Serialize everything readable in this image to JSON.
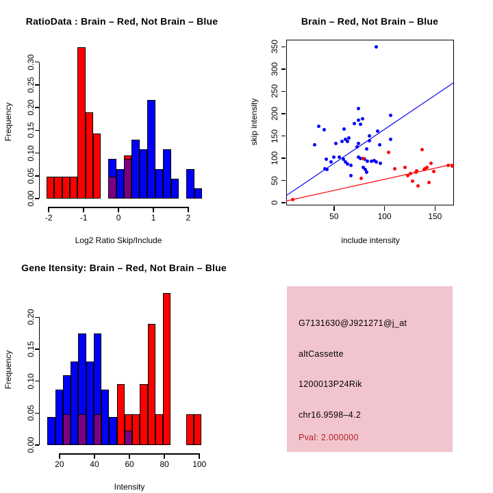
{
  "colors": {
    "red": "#ff0000",
    "blue": "#0000f5",
    "purple": "#7d0082",
    "pink_bg": "#f2c5ce",
    "pval_red": "#b22222",
    "axis": "#000000",
    "text": "#000000"
  },
  "chart_data": [
    {
      "id": "ratio_hist",
      "type": "bar",
      "variant": "overlaid-histograms",
      "title": "RatioData : Brain – Red, Not Brain – Blue",
      "xlabel": "Log2 Ratio Skip/Include",
      "ylabel": "Frequency",
      "xlim": [
        -2.26,
        2.57
      ],
      "ylim": [
        0,
        0.358
      ],
      "grid": false,
      "x_ticks": {
        "values": [
          -2,
          -1,
          0,
          1,
          2
        ],
        "labels": [
          "-2",
          "-1",
          "0",
          "1",
          "2"
        ]
      },
      "y_ticks": {
        "values": [
          0,
          0.05,
          0.1,
          0.15,
          0.2,
          0.25,
          0.3
        ],
        "labels": [
          "0.00",
          "0.05",
          "0.10",
          "0.15",
          "0.20",
          "0.25",
          "0.30"
        ]
      },
      "series": [
        {
          "name": "Brain (red)",
          "color": "red",
          "bins": [
            {
              "x0": -2.07,
              "x1": -1.85,
              "h": 0.048
            },
            {
              "x0": -1.85,
              "x1": -1.62,
              "h": 0.048
            },
            {
              "x0": -1.62,
              "x1": -1.4,
              "h": 0.048
            },
            {
              "x0": -1.4,
              "x1": -1.18,
              "h": 0.048
            },
            {
              "x0": -1.18,
              "x1": -0.95,
              "h": 0.333
            },
            {
              "x0": -0.95,
              "x1": -0.73,
              "h": 0.19
            },
            {
              "x0": -0.73,
              "x1": -0.51,
              "h": 0.143
            },
            {
              "x0": -0.29,
              "x1": -0.06,
              "h": 0.048
            },
            {
              "x0": 0.16,
              "x1": 0.38,
              "h": 0.095
            }
          ]
        },
        {
          "name": "Not Brain (blue)",
          "color": "blue",
          "bins": [
            {
              "x0": -0.29,
              "x1": -0.06,
              "h": 0.087
            },
            {
              "x0": -0.06,
              "x1": 0.16,
              "h": 0.065
            },
            {
              "x0": 0.16,
              "x1": 0.38,
              "h": 0.087
            },
            {
              "x0": 0.38,
              "x1": 0.61,
              "h": 0.13
            },
            {
              "x0": 0.61,
              "x1": 0.83,
              "h": 0.109
            },
            {
              "x0": 0.83,
              "x1": 1.05,
              "h": 0.217
            },
            {
              "x0": 1.05,
              "x1": 1.28,
              "h": 0.065
            },
            {
              "x0": 1.28,
              "x1": 1.5,
              "h": 0.109
            },
            {
              "x0": 1.5,
              "x1": 1.72,
              "h": 0.043
            },
            {
              "x0": 1.94,
              "x1": 2.17,
              "h": 0.065
            },
            {
              "x0": 2.17,
              "x1": 2.39,
              "h": 0.022
            }
          ]
        }
      ],
      "overlap": {
        "color": "purple",
        "bins": [
          {
            "x0": -0.29,
            "x1": -0.06,
            "h": 0.048
          },
          {
            "x0": 0.16,
            "x1": 0.38,
            "h": 0.087
          }
        ]
      }
    },
    {
      "id": "intensity_scatter",
      "type": "scatter",
      "title": "Brain – Red, Not Brain – Blue",
      "xlabel": "include intensity",
      "ylabel": "skip intensity",
      "xlim": [
        2.6,
        168.8
      ],
      "ylim": [
        -6,
        366
      ],
      "grid": false,
      "x_ticks": {
        "values": [
          50,
          100,
          150
        ],
        "labels": [
          "50",
          "100",
          "150"
        ]
      },
      "y_ticks": {
        "values": [
          0,
          50,
          100,
          150,
          200,
          250,
          300,
          350
        ],
        "labels": [
          "0",
          "50",
          "100",
          "150",
          "200",
          "250",
          "300",
          "350"
        ]
      },
      "series": [
        {
          "name": "Not Brain (blue)",
          "color": "blue",
          "points": [
            [
              92,
              350
            ],
            [
              74,
              212
            ],
            [
              106,
              196
            ],
            [
              35,
              172
            ],
            [
              40,
              164
            ],
            [
              60,
              165
            ],
            [
              70,
              178
            ],
            [
              74,
              185
            ],
            [
              78,
              188
            ],
            [
              76,
              176
            ],
            [
              31,
              130
            ],
            [
              52,
              133
            ],
            [
              58,
              138
            ],
            [
              63,
              137
            ],
            [
              74,
              133
            ],
            [
              61,
              143
            ],
            [
              65,
              146
            ],
            [
              85,
              150
            ],
            [
              93,
              161
            ],
            [
              85,
              139
            ],
            [
              95,
              130
            ],
            [
              106,
              142
            ],
            [
              73,
              125
            ],
            [
              82,
              121
            ],
            [
              42,
              97
            ],
            [
              47,
              92
            ],
            [
              50,
              102
            ],
            [
              55,
              103
            ],
            [
              59,
              97
            ],
            [
              61,
              91
            ],
            [
              41,
              77
            ],
            [
              43,
              75
            ],
            [
              63,
              87
            ],
            [
              67,
              84
            ],
            [
              74,
              102
            ],
            [
              76,
              99
            ],
            [
              80,
              97
            ],
            [
              83,
              93
            ],
            [
              87,
              93
            ],
            [
              90,
              95
            ],
            [
              92,
              92
            ],
            [
              96,
              88
            ],
            [
              79,
              79
            ],
            [
              81,
              75
            ],
            [
              82,
              69
            ],
            [
              67,
              61
            ]
          ]
        },
        {
          "name": "Brain (red)",
          "color": "red",
          "points": [
            [
              9,
              7
            ],
            [
              79,
              99
            ],
            [
              104,
              113
            ],
            [
              77,
              54
            ],
            [
              110,
              77
            ],
            [
              120,
              79
            ],
            [
              123,
              61
            ],
            [
              126,
              66
            ],
            [
              131,
              69
            ],
            [
              132,
              72
            ],
            [
              137,
              120
            ],
            [
              139,
              75
            ],
            [
              140,
              77
            ],
            [
              142,
              79
            ],
            [
              146,
              88
            ],
            [
              128,
              48
            ],
            [
              133,
              38
            ],
            [
              144,
              46
            ],
            [
              149,
              70
            ],
            [
              163,
              84
            ],
            [
              167,
              82
            ]
          ]
        }
      ],
      "lines": [
        {
          "name": "not-brain-fit",
          "color": "blue",
          "from": [
            2.6,
            16
          ],
          "to": [
            168.8,
            270
          ]
        },
        {
          "name": "brain-fit",
          "color": "red",
          "from": [
            2.6,
            4
          ],
          "to": [
            168.8,
            87
          ]
        }
      ]
    },
    {
      "id": "gene_hist",
      "type": "bar",
      "variant": "overlaid-histograms",
      "title": "Gene Itensity: Brain – Red, Not Brain – Blue",
      "xlabel": "Intensity",
      "ylabel": "Frequency",
      "xlim": [
        8.7,
        105.0
      ],
      "ylim": [
        0,
        0.2465
      ],
      "grid": false,
      "x_ticks": {
        "values": [
          20,
          40,
          60,
          80,
          100
        ],
        "labels": [
          "20",
          "40",
          "60",
          "80",
          "100"
        ]
      },
      "y_ticks": {
        "values": [
          0,
          0.05,
          0.1,
          0.15,
          0.2
        ],
        "labels": [
          "0.00",
          "0.05",
          "0.10",
          "0.15",
          "0.20"
        ]
      },
      "series": [
        {
          "name": "Brain (red)",
          "color": "red",
          "bins": [
            {
              "x0": 22.0,
              "x1": 26.4,
              "h": 0.048
            },
            {
              "x0": 30.8,
              "x1": 35.2,
              "h": 0.048
            },
            {
              "x0": 39.6,
              "x1": 44.0,
              "h": 0.048
            },
            {
              "x0": 52.8,
              "x1": 57.2,
              "h": 0.095
            },
            {
              "x0": 57.2,
              "x1": 61.6,
              "h": 0.048
            },
            {
              "x0": 61.6,
              "x1": 66.0,
              "h": 0.048
            },
            {
              "x0": 66.0,
              "x1": 70.4,
              "h": 0.095
            },
            {
              "x0": 70.4,
              "x1": 74.8,
              "h": 0.19
            },
            {
              "x0": 74.8,
              "x1": 79.2,
              "h": 0.048
            },
            {
              "x0": 79.2,
              "x1": 83.6,
              "h": 0.238
            },
            {
              "x0": 92.4,
              "x1": 96.8,
              "h": 0.048
            },
            {
              "x0": 96.8,
              "x1": 101.2,
              "h": 0.048
            }
          ]
        },
        {
          "name": "Not Brain (blue)",
          "color": "blue",
          "bins": [
            {
              "x0": 13.2,
              "x1": 17.6,
              "h": 0.044
            },
            {
              "x0": 17.6,
              "x1": 22.0,
              "h": 0.087
            },
            {
              "x0": 22.0,
              "x1": 26.4,
              "h": 0.109
            },
            {
              "x0": 26.4,
              "x1": 30.8,
              "h": 0.131
            },
            {
              "x0": 30.8,
              "x1": 35.2,
              "h": 0.175
            },
            {
              "x0": 35.2,
              "x1": 39.6,
              "h": 0.131
            },
            {
              "x0": 39.6,
              "x1": 44.0,
              "h": 0.175
            },
            {
              "x0": 44.0,
              "x1": 48.4,
              "h": 0.087
            },
            {
              "x0": 48.4,
              "x1": 52.8,
              "h": 0.044
            },
            {
              "x0": 57.2,
              "x1": 61.6,
              "h": 0.022
            }
          ]
        }
      ],
      "overlap": {
        "color": "purple",
        "bins": [
          {
            "x0": 22.0,
            "x1": 26.4,
            "h": 0.048
          },
          {
            "x0": 30.8,
            "x1": 35.2,
            "h": 0.048
          },
          {
            "x0": 39.6,
            "x1": 44.0,
            "h": 0.048
          },
          {
            "x0": 57.2,
            "x1": 61.6,
            "h": 0.022
          }
        ]
      }
    }
  ],
  "info_panel": {
    "background": "#f2c5ce",
    "lines": [
      {
        "text": "G7131630@J921271@j_at",
        "color": "#000000"
      },
      {
        "text": "altCassette",
        "color": "#000000"
      },
      {
        "text": "1200013P24Rik",
        "color": "#000000"
      },
      {
        "text": "chr16.9598–4.2",
        "color": "#000000"
      },
      {
        "text": "Pval: 2.000000",
        "color": "#b22222"
      }
    ]
  }
}
